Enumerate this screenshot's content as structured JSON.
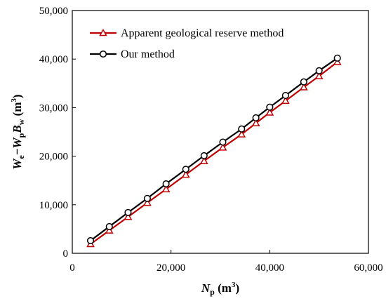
{
  "chart_data": {
    "type": "line",
    "x_ticks": [
      "0",
      "20,000",
      "40,000",
      "60,000"
    ],
    "y_ticks": [
      "0",
      "10,000",
      "20,000",
      "30,000",
      "40,000",
      "50,000"
    ],
    "xlim": [
      0,
      60000
    ],
    "ylim": [
      0,
      50000
    ],
    "grid": false,
    "legend_position": "top-left",
    "xlabel": {
      "main": "N",
      "sub": "p",
      "unit": " (m",
      "sup": "3",
      "close": ")"
    },
    "ylabel": {
      "w1": "W",
      "s1": "e",
      "minus": "−",
      "w2": "W",
      "s2": "p",
      "b": "B",
      "s3": "w",
      "unit": " (m",
      "sup": "3",
      "close": ")"
    },
    "series": [
      {
        "name": "Apparent geological reserve method",
        "color": "#c00000",
        "marker": "triangle-open",
        "x": [
          3700,
          7500,
          11300,
          15200,
          19000,
          23000,
          26700,
          30500,
          34300,
          37200,
          40000,
          43200,
          46900,
          50000,
          53700
        ],
        "y": [
          1900,
          4700,
          7500,
          10400,
          13200,
          16200,
          19000,
          21800,
          24500,
          26800,
          29000,
          31400,
          34200,
          36500,
          39400
        ]
      },
      {
        "name": "Our method",
        "color": "#000000",
        "marker": "circle-open",
        "x": [
          3700,
          7500,
          11300,
          15200,
          19000,
          23000,
          26700,
          30500,
          34300,
          37200,
          40000,
          43200,
          46900,
          50000,
          53700
        ],
        "y": [
          2600,
          5500,
          8400,
          11300,
          14300,
          17300,
          20100,
          22900,
          25600,
          27900,
          30100,
          32500,
          35300,
          37600,
          40200
        ]
      }
    ]
  }
}
